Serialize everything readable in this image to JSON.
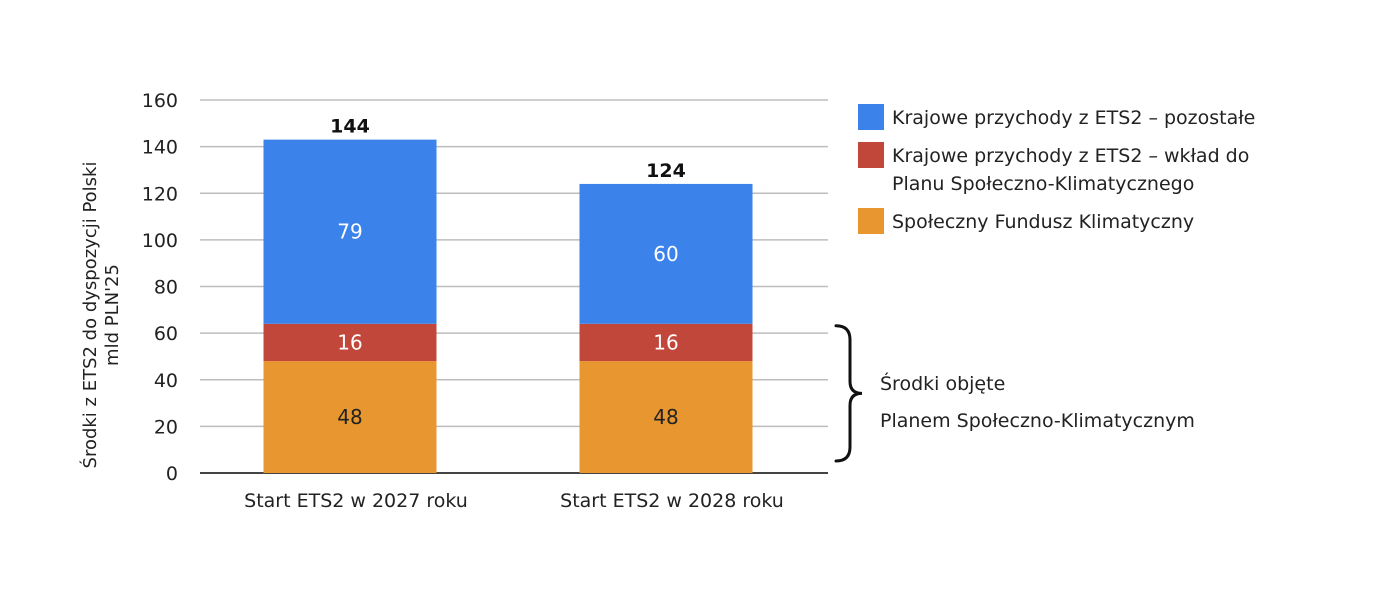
{
  "chart_data": {
    "type": "bar",
    "stacked": true,
    "title": "",
    "xlabel": "",
    "ylabel_lines": [
      "Środki z ETS2 do dyspozycji Polski",
      "mld PLN'25"
    ],
    "ylim": [
      0,
      160
    ],
    "yticks": [
      0,
      20,
      40,
      60,
      80,
      100,
      120,
      140,
      160
    ],
    "categories": [
      "Start ETS2 w 2027 roku",
      "Start ETS2 w 2028 roku"
    ],
    "totals": [
      "144",
      "124"
    ],
    "series": [
      {
        "name": "Społeczny Fundusz Klimatyczny",
        "values": [
          48,
          48
        ],
        "color": "#E8962F",
        "label_color": "#222222"
      },
      {
        "name": "Krajowe przychody z ETS2 – wkład do Planu Społeczno-Klimatycznego",
        "values": [
          16,
          16
        ],
        "color": "#C2473B",
        "label_color": "#ffffff"
      },
      {
        "name": "Krajowe przychody z ETS2 – pozostałe",
        "values": [
          79,
          60
        ],
        "color": "#3B82EA",
        "label_color": "#ffffff"
      }
    ],
    "legend_position": "right",
    "legend_order": [
      2,
      1,
      0
    ],
    "legend_lines": [
      [
        "Krajowe przychody z ETS2 – pozostałe"
      ],
      [
        "Krajowe przychody z ETS2 – wkład do",
        "Planu Społeczno-Klimatycznego"
      ],
      [
        "Społeczny Fundusz Klimatyczny"
      ]
    ],
    "bracket_annotation": {
      "lines": [
        "Środki objęte",
        "Planem Społeczno-Klimatycznym"
      ],
      "range": [
        0,
        64
      ]
    },
    "grid": true
  }
}
